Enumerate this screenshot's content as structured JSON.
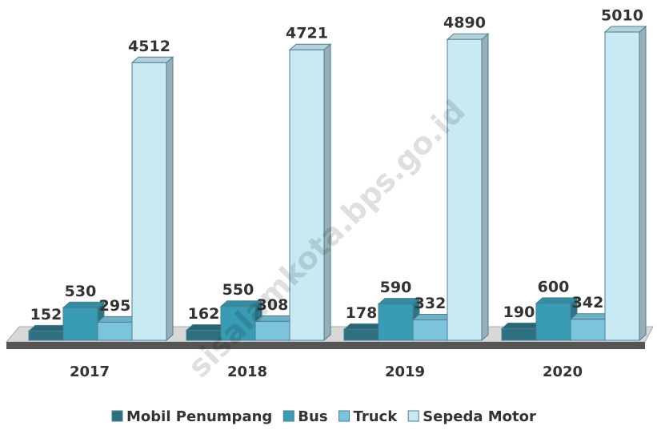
{
  "chart_data": {
    "type": "bar3d",
    "categories": [
      "2017",
      "2018",
      "2019",
      "2020"
    ],
    "series": [
      {
        "name": "Mobil Penumpang",
        "color": "#2f6f82",
        "values": [
          152,
          162,
          178,
          190
        ]
      },
      {
        "name": "Bus",
        "color": "#3a9bb5",
        "values": [
          530,
          550,
          590,
          600
        ]
      },
      {
        "name": "Truck",
        "color": "#7cc3dc",
        "values": [
          295,
          308,
          332,
          342
        ]
      },
      {
        "name": "Sepeda Motor",
        "color": "#c9e9f3",
        "values": [
          4512,
          4721,
          4890,
          5010
        ]
      }
    ],
    "watermark": "sisalamkota.bps.go.id"
  }
}
